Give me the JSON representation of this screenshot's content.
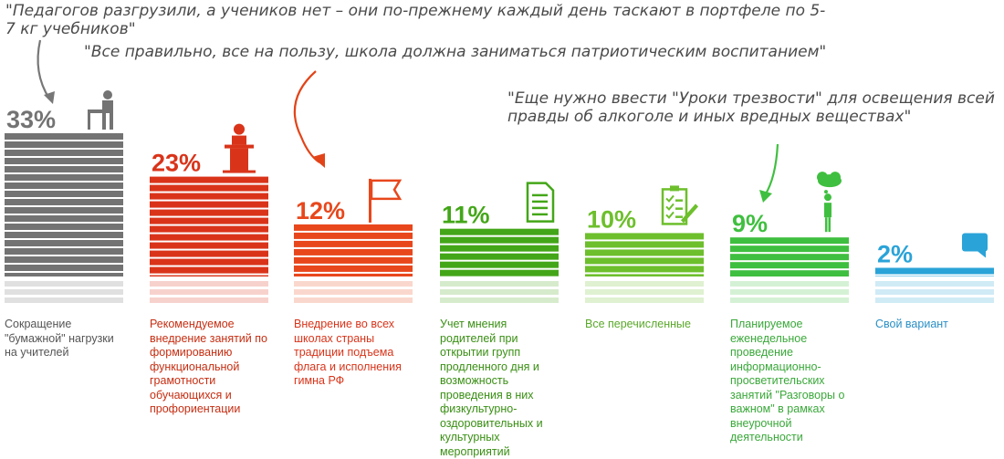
{
  "quotes": [
    "\"Педагогов разгрузили, а учеников нет – они по-прежнему каждый день таскают в портфеле по 5-7 кг учебников\"",
    "\"Все правильно, все на пользу, школа должна заниматься патриотическим воспитанием\"",
    "\"Еще нужно ввести \"Уроки трезвости\" для освещения всей правды об алкоголе и иных вредных веществах\""
  ],
  "colors": {
    "gray": "#737373",
    "red": "#d9341a",
    "orange": "#e8471c",
    "green": "#43a618",
    "lightgreen": "#6dbf2c",
    "brightgreen": "#3fbf3f",
    "blue": "#2aa3d8",
    "arrow_gray": "#777777",
    "arrow_red": "#e24418",
    "arrow_green": "#3fbf3f"
  },
  "chart_data": {
    "type": "bar",
    "categories": [
      "Сокращение \"бумажной\" нагрузки на учителей",
      "Рекомендуемое внедрение занятий по формированию функциональной грамотности обучающихся и профориентации",
      "Внедрение во всех школах страны традиции подъема флага и исполнения  гимна РФ",
      "Учет мнения родителей при открытии групп продленного дня и возможность проведения в них физкультурно-оздоровительных и культурных мероприятий",
      "Все перечисленные",
      "Планируемое еженедельное проведение информационно-просветительских занятий \"Разговоры о важном\" в рамках внеурочной деятельности",
      "Свой вариант"
    ],
    "values": [
      33,
      23,
      12,
      11,
      10,
      9,
      2
    ],
    "labels": [
      "33%",
      "23%",
      "12%",
      "11%",
      "10%",
      "9%",
      "2%"
    ],
    "colors": [
      "#737373",
      "#d9341a",
      "#e8471c",
      "#43a618",
      "#6dbf2c",
      "#3fbf3f",
      "#2aa3d8"
    ],
    "icons": [
      "teacher-desk-icon",
      "podium-speaker-icon",
      "flag-icon",
      "document-icon",
      "checklist-icon",
      "thinking-person-icon",
      "speech-bubble-icon"
    ],
    "ylim": [
      0,
      35
    ]
  }
}
